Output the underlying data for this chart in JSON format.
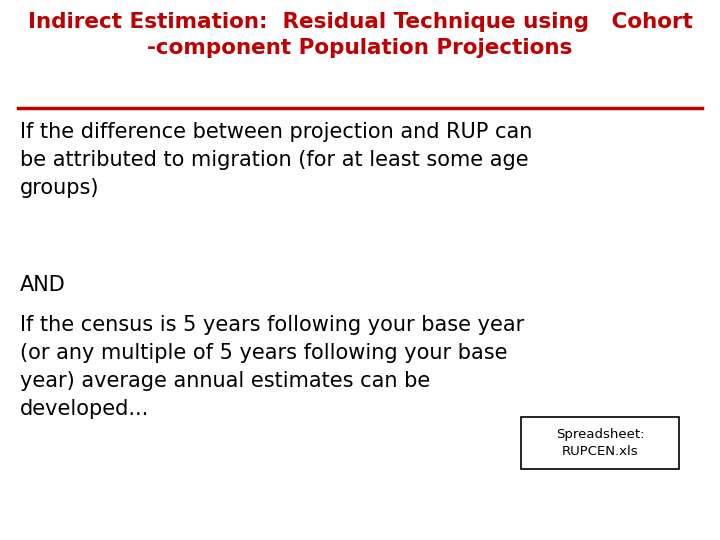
{
  "title_line1": "Indirect Estimation:  Residual Technique using   Cohort",
  "title_line2": "-component Population Projections",
  "title_color": "#C00000",
  "title_fontsize": 15.5,
  "line_color": "#C00000",
  "body_color": "#000000",
  "body_fontsize": 15.0,
  "para1": "If the difference between projection and RUP can\nbe attributed to migration (for at least some age\ngroups)",
  "para2": "AND",
  "para3": "If the census is 5 years following your base year\n(or any multiple of 5 years following your base\nyear) average annual estimates can be\ndeveloped...",
  "spreadsheet_label": "Spreadsheet:\nRUPCEN.xls",
  "background_color": "#FFFFFF",
  "box_color": "#FFFFFF",
  "box_edge_color": "#000000"
}
